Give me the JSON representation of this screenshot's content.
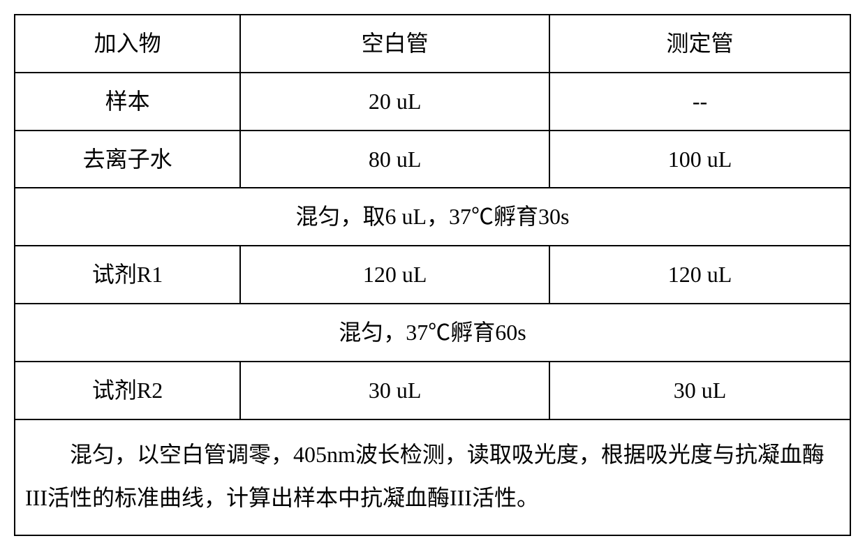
{
  "table": {
    "header": {
      "col1": "加入物",
      "col2": "空白管",
      "col3": "测定管"
    },
    "rows": [
      {
        "label": "样本",
        "blank": "20 uL",
        "test": "--"
      },
      {
        "label": "去离子水",
        "blank": "80 uL",
        "test": "100 uL"
      }
    ],
    "instruction1": "混匀，取6 uL，37℃孵育30s",
    "rows2": [
      {
        "label": "试剂R1",
        "blank": "120 uL",
        "test": "120 uL"
      }
    ],
    "instruction2": "混匀，37℃孵育60s",
    "rows3": [
      {
        "label": "试剂R2",
        "blank": "30 uL",
        "test": "30 uL"
      }
    ],
    "finalInstruction": "混匀，以空白管调零，405nm波长检测，读取吸光度，根据吸光度与抗凝血酶III活性的标准曲线，计算出样本中抗凝血酶III活性。"
  },
  "styling": {
    "border_color": "#000000",
    "text_color": "#000000",
    "background_color": "#ffffff",
    "font_size": 32,
    "border_width": 2
  }
}
